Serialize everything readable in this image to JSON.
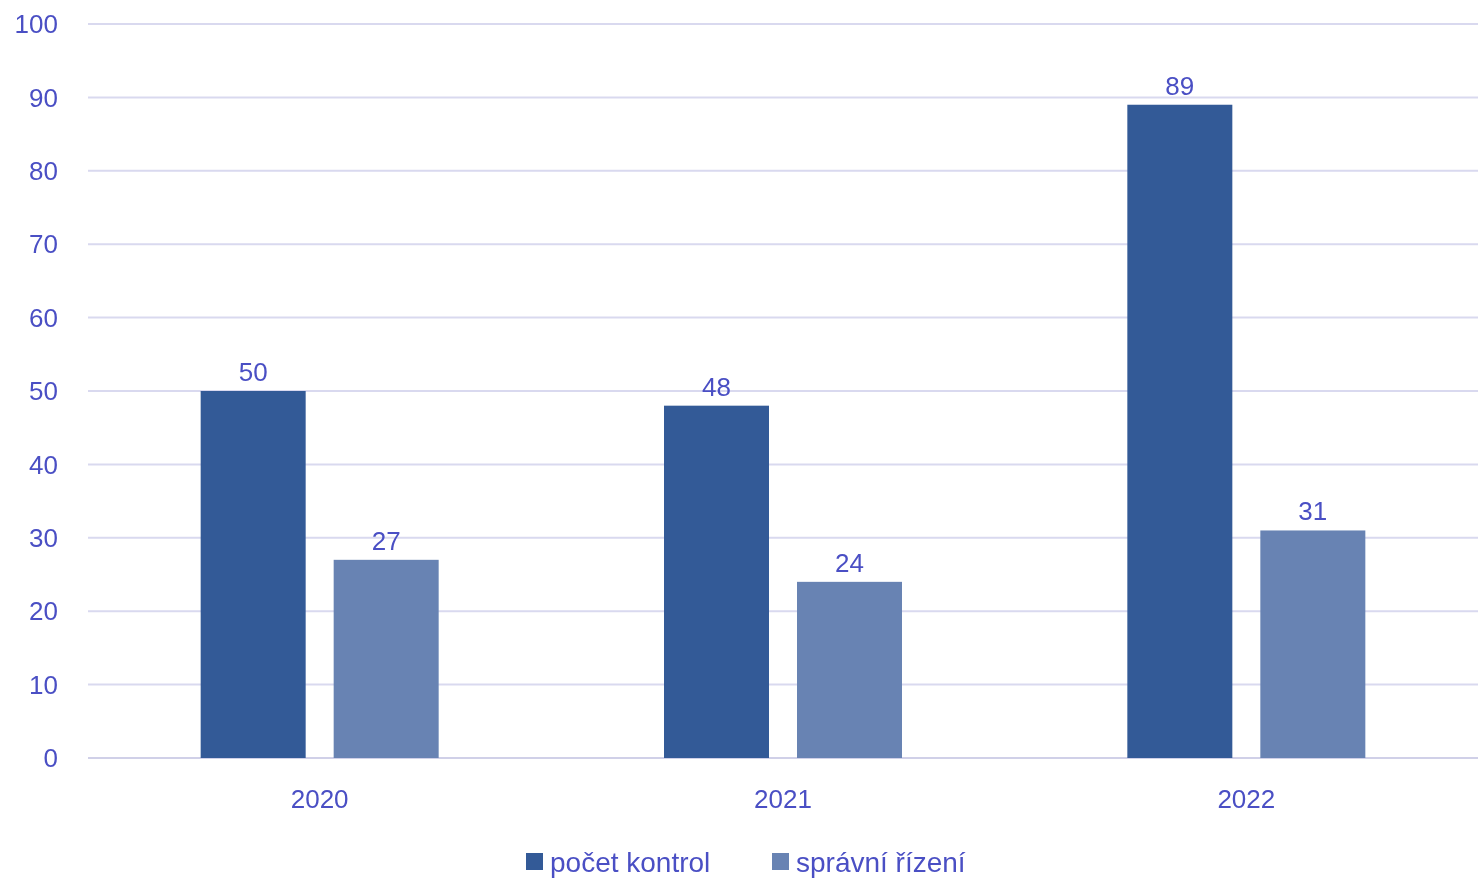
{
  "chart_data": {
    "type": "bar",
    "categories": [
      "2020",
      "2021",
      "2022"
    ],
    "series": [
      {
        "name": "počet kontrol",
        "color": "#335a97",
        "values": [
          50,
          48,
          89
        ]
      },
      {
        "name": "správní řízení",
        "color": "#6883b3",
        "values": [
          27,
          24,
          31
        ]
      }
    ],
    "ylim": [
      0,
      100
    ],
    "yticks": [
      0,
      10,
      20,
      30,
      40,
      50,
      60,
      70,
      80,
      90,
      100
    ],
    "grid": "y",
    "legend": "bottom",
    "data_labels": true
  }
}
